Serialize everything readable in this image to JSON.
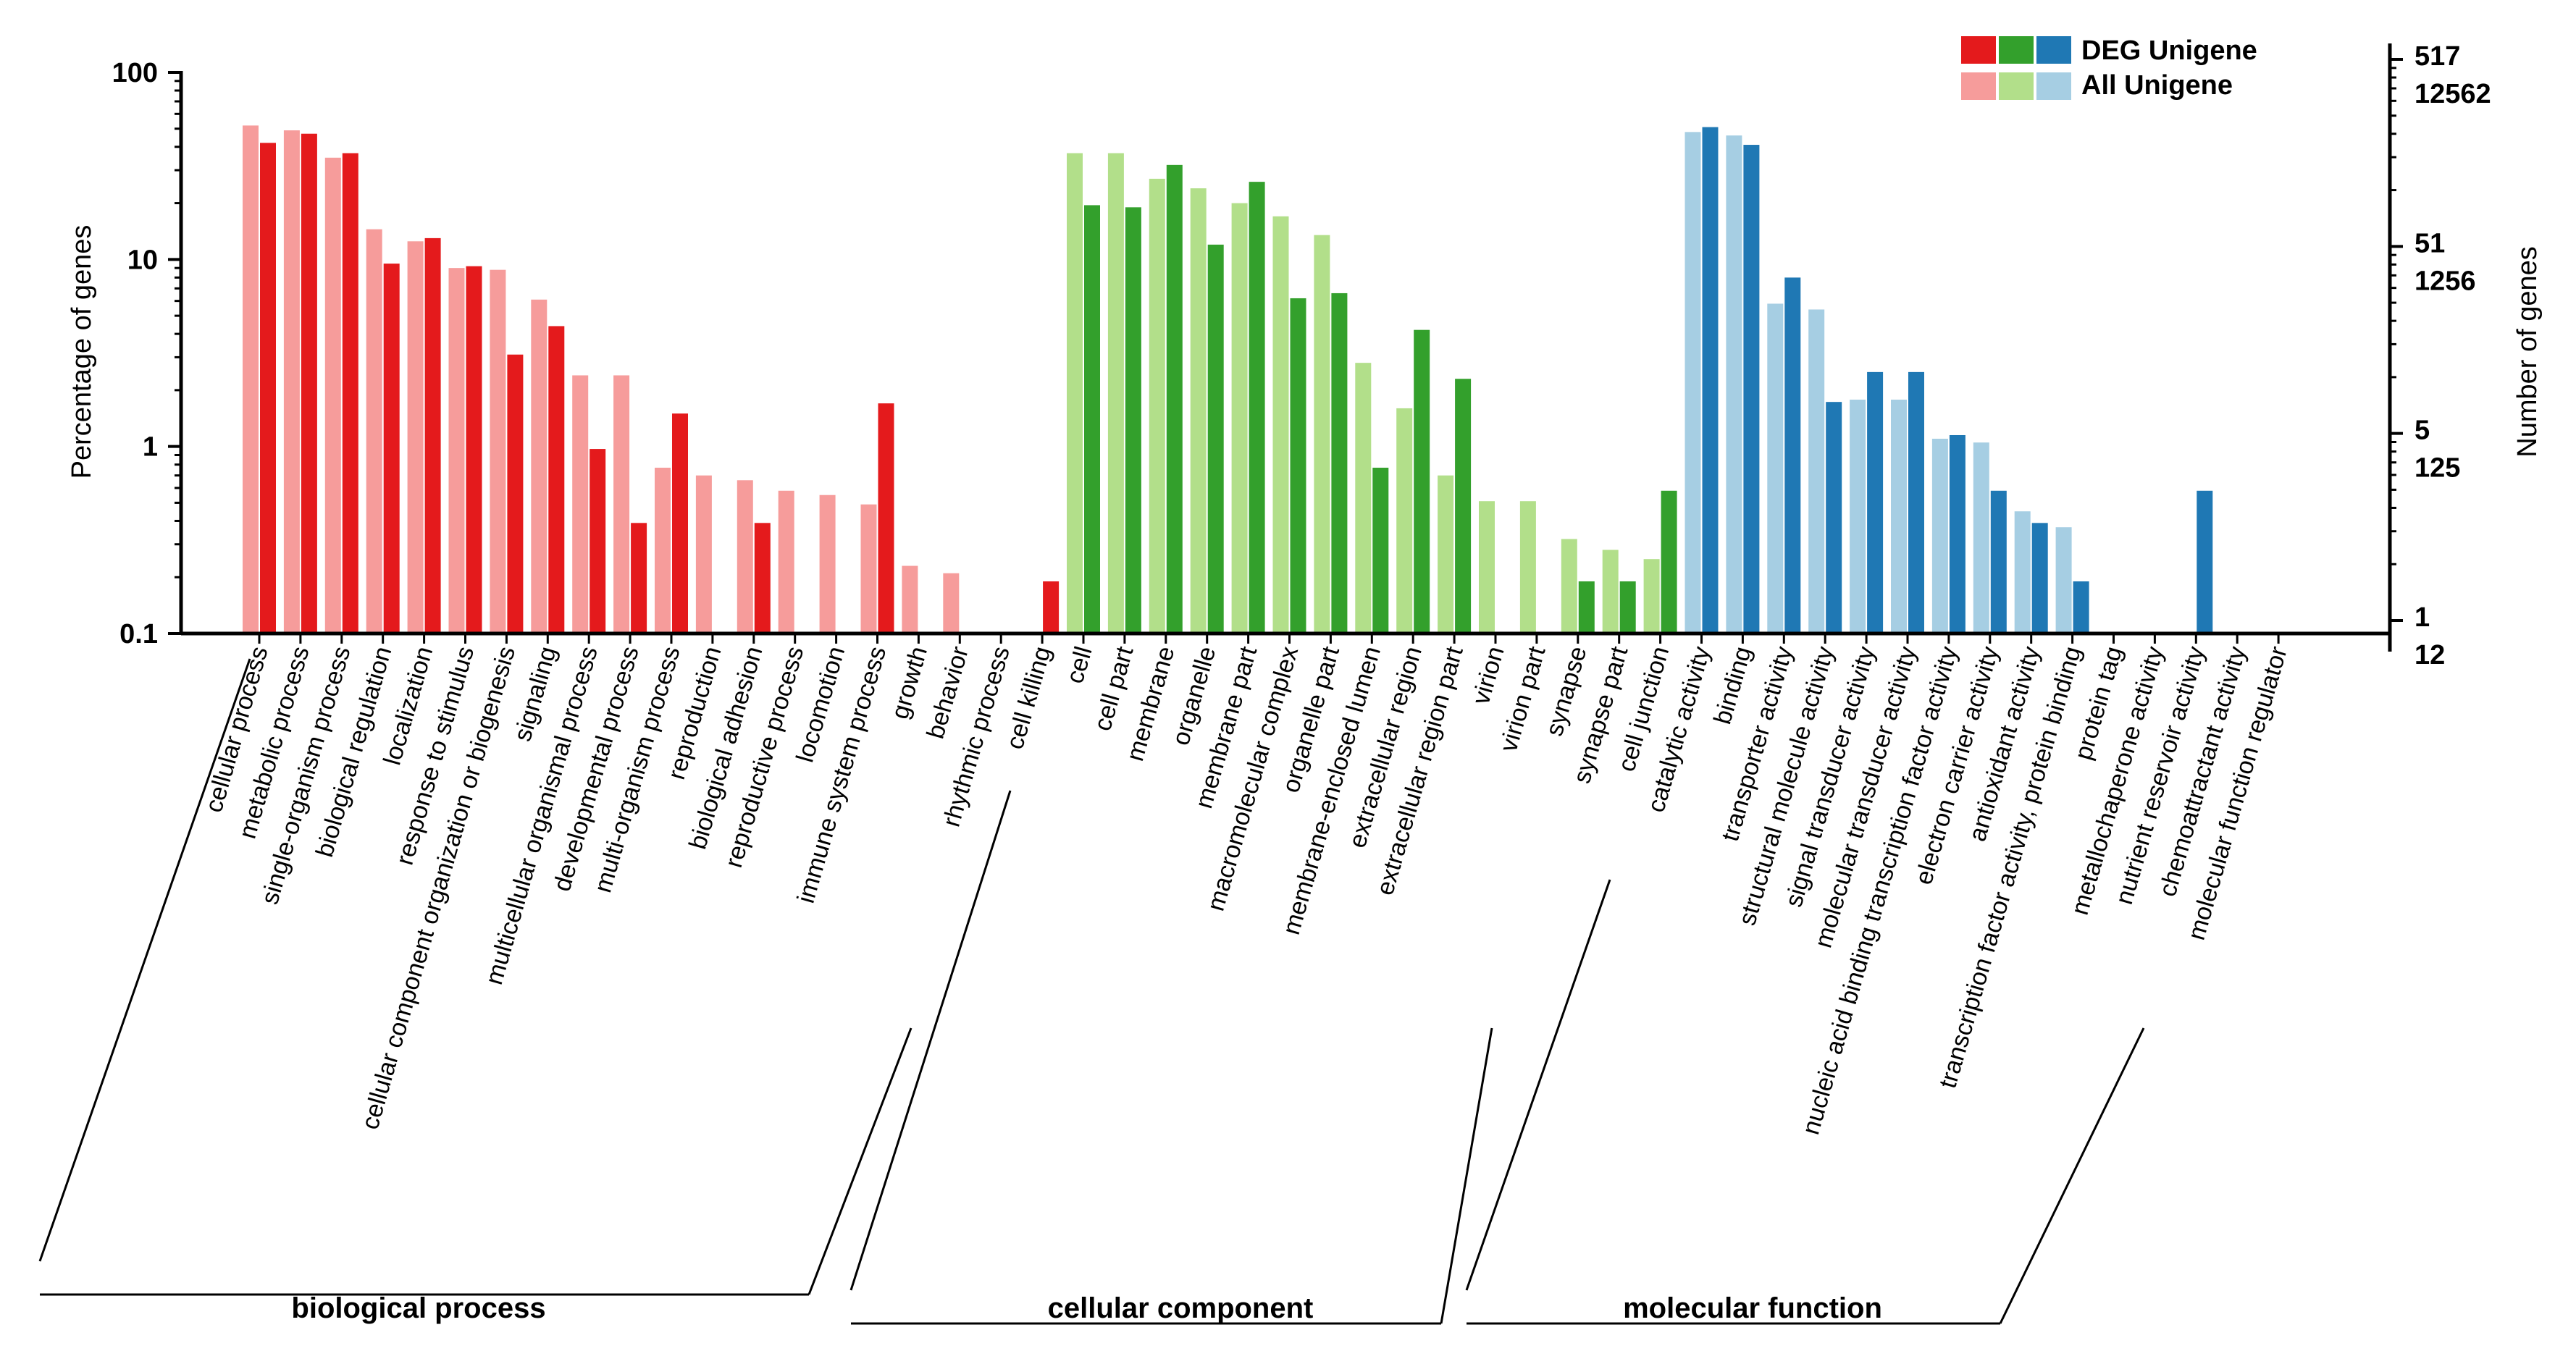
{
  "chart_data": {
    "type": "bar",
    "scale": "log",
    "ylabel": "Percentage of genes",
    "y2label": "Number of genes",
    "ylim": [
      0.1,
      100
    ],
    "yticks": [
      "100",
      "10",
      "1",
      "0.1"
    ],
    "right_ticks": [
      {
        "deg": "517",
        "all": "12562"
      },
      {
        "deg": "51",
        "all": "1256"
      },
      {
        "deg": "5",
        "all": "125"
      },
      {
        "deg": "1",
        "all": "12"
      }
    ],
    "legend": {
      "deg": "DEG Unigene",
      "all": "All Unigene",
      "position": "top-right"
    },
    "groups": [
      {
        "name": "biological process",
        "color_deg": "#e41a1c",
        "color_all": "#f69c9b",
        "categories": [
          {
            "label": "cellular process",
            "all": 52,
            "deg": 42
          },
          {
            "label": "metabolic process",
            "all": 49,
            "deg": 47
          },
          {
            "label": "single-organism process",
            "all": 35,
            "deg": 37
          },
          {
            "label": "biological regulation",
            "all": 14.5,
            "deg": 9.5
          },
          {
            "label": "localization",
            "all": 12.5,
            "deg": 13
          },
          {
            "label": "response to stimulus",
            "all": 9,
            "deg": 9.2
          },
          {
            "label": "cellular component organization or biogenesis",
            "all": 8.8,
            "deg": 3.1
          },
          {
            "label": "signaling",
            "all": 6.1,
            "deg": 4.4
          },
          {
            "label": "multicellular organismal process",
            "all": 2.4,
            "deg": 0.97
          },
          {
            "label": "developmental process",
            "all": 2.4,
            "deg": 0.39
          },
          {
            "label": "multi-organism process",
            "all": 0.77,
            "deg": 1.5
          },
          {
            "label": "reproduction",
            "all": 0.7,
            "deg": null
          },
          {
            "label": "biological adhesion",
            "all": 0.66,
            "deg": 0.39
          },
          {
            "label": "reproductive process",
            "all": 0.58,
            "deg": null
          },
          {
            "label": "locomotion",
            "all": 0.55,
            "deg": null
          },
          {
            "label": "immune system process",
            "all": 0.49,
            "deg": 1.7
          },
          {
            "label": "growth",
            "all": 0.23,
            "deg": null
          },
          {
            "label": "behavior",
            "all": 0.21,
            "deg": null
          },
          {
            "label": "rhythmic process",
            "all": null,
            "deg": null
          },
          {
            "label": "cell killing",
            "all": null,
            "deg": 0.19
          }
        ]
      },
      {
        "name": "cellular component",
        "color_deg": "#33a02c",
        "color_all": "#b2df8a",
        "categories": [
          {
            "label": "cell",
            "all": 37,
            "deg": 19.5
          },
          {
            "label": "cell part",
            "all": 37,
            "deg": 19
          },
          {
            "label": "membrane",
            "all": 27,
            "deg": 32
          },
          {
            "label": "organelle",
            "all": 24,
            "deg": 12
          },
          {
            "label": "membrane part",
            "all": 20,
            "deg": 26
          },
          {
            "label": "macromolecular complex",
            "all": 17,
            "deg": 6.2
          },
          {
            "label": "organelle part",
            "all": 13.5,
            "deg": 6.6
          },
          {
            "label": "membrane-enclosed lumen",
            "all": 2.8,
            "deg": 0.77
          },
          {
            "label": "extracellular region",
            "all": 1.6,
            "deg": 4.2
          },
          {
            "label": "extracellular region part",
            "all": 0.7,
            "deg": 2.3
          },
          {
            "label": "virion",
            "all": 0.51,
            "deg": null
          },
          {
            "label": "virion part",
            "all": 0.51,
            "deg": null
          },
          {
            "label": "synapse",
            "all": 0.32,
            "deg": 0.19
          },
          {
            "label": "synapse part",
            "all": 0.28,
            "deg": 0.19
          },
          {
            "label": "cell junction",
            "all": 0.25,
            "deg": 0.58
          }
        ]
      },
      {
        "name": "molecular function",
        "color_deg": "#1f78b4",
        "color_all": "#a6cee3",
        "categories": [
          {
            "label": "catalytic activity",
            "all": 48,
            "deg": 51
          },
          {
            "label": "binding",
            "all": 46,
            "deg": 41
          },
          {
            "label": "transporter activity",
            "all": 5.8,
            "deg": 8
          },
          {
            "label": "structural molecule activity",
            "all": 5.4,
            "deg": 1.73
          },
          {
            "label": "signal transducer activity",
            "all": 1.78,
            "deg": 2.5
          },
          {
            "label": "molecular transducer activity",
            "all": 1.78,
            "deg": 2.5
          },
          {
            "label": "nucleic acid binding transcription factor activity",
            "all": 1.1,
            "deg": 1.15
          },
          {
            "label": "electron carrier activity",
            "all": 1.05,
            "deg": 0.58
          },
          {
            "label": "antioxidant activity",
            "all": 0.45,
            "deg": 0.39
          },
          {
            "label": "transcription factor activity, protein binding",
            "all": 0.37,
            "deg": 0.19
          },
          {
            "label": "protein tag",
            "all": null,
            "deg": null
          },
          {
            "label": "metallochaperone activity",
            "all": null,
            "deg": null
          },
          {
            "label": "nutrient reservoir activity",
            "all": null,
            "deg": 0.58
          },
          {
            "label": "chemoattractant activity",
            "all": null,
            "deg": null
          },
          {
            "label": "molecular function regulator",
            "all": null,
            "deg": null
          }
        ]
      }
    ]
  }
}
